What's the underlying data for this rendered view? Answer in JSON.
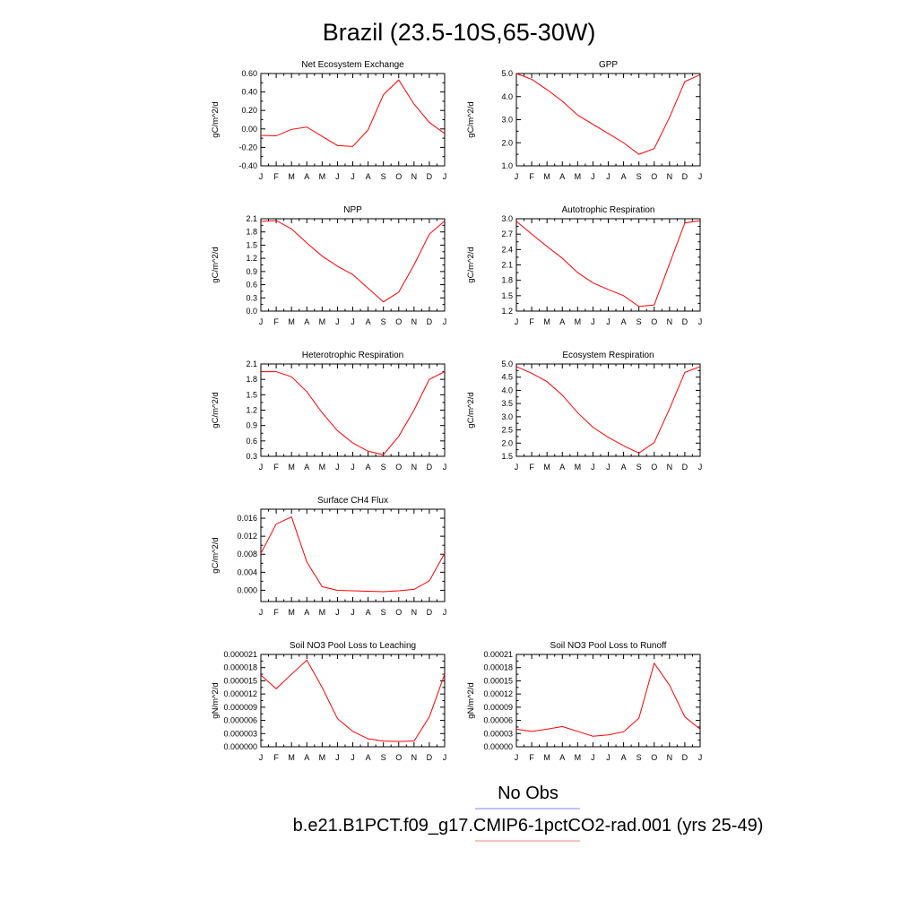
{
  "figure": {
    "title": "Brazil (23.5-10S,65-30W)"
  },
  "legend": {
    "obs_label": "No Obs",
    "model_label": "b.e21.B1PCT.f09_g17.CMIP6-1pctCO2-rad.001 (yrs 25-49)",
    "obs_color": "#8080ff",
    "model_color": "#ff8080"
  },
  "series_color": "#ff0000",
  "chart_data": [
    {
      "type": "line",
      "title": "Net Ecosystem Exchange",
      "ylabel": "gC/m^2/d",
      "x": [
        "J",
        "F",
        "M",
        "A",
        "M",
        "J",
        "J",
        "A",
        "S",
        "O",
        "N",
        "D",
        "J"
      ],
      "ylim": [
        -0.4,
        0.6
      ],
      "yticks": [
        -0.4,
        -0.2,
        0.0,
        0.2,
        0.4,
        0.6
      ],
      "ytick_labels": [
        "-0.40",
        "-0.20",
        "0.00",
        "0.20",
        "0.40",
        "0.60"
      ],
      "series": [
        {
          "values": [
            -0.07,
            -0.075,
            -0.005,
            0.02,
            -0.08,
            -0.18,
            -0.19,
            -0.01,
            0.37,
            0.53,
            0.27,
            0.07,
            -0.05
          ]
        }
      ]
    },
    {
      "type": "line",
      "title": "GPP",
      "ylabel": "gC/m^2/d",
      "x": [
        "J",
        "F",
        "M",
        "A",
        "M",
        "J",
        "J",
        "A",
        "S",
        "O",
        "N",
        "D",
        "J"
      ],
      "ylim": [
        1.0,
        5.0
      ],
      "yticks": [
        1,
        2,
        3,
        4,
        5
      ],
      "ytick_labels": [
        "1.0",
        "2.0",
        "3.0",
        "4.0",
        "5.0"
      ],
      "series": [
        {
          "values": [
            5.0,
            4.75,
            4.3,
            3.8,
            3.2,
            2.8,
            2.4,
            2.0,
            1.5,
            1.75,
            3.1,
            4.65,
            4.95
          ]
        }
      ]
    },
    {
      "type": "line",
      "title": "NPP",
      "ylabel": "gC/m^2/d",
      "x": [
        "J",
        "F",
        "M",
        "A",
        "M",
        "J",
        "J",
        "A",
        "S",
        "O",
        "N",
        "D",
        "J"
      ],
      "ylim": [
        0.0,
        2.1
      ],
      "yticks": [
        0,
        0.3,
        0.6,
        0.9,
        1.2,
        1.5,
        1.8,
        2.1
      ],
      "ytick_labels": [
        "0.0",
        "0.3",
        "0.6",
        "0.9",
        "1.2",
        "1.5",
        "1.8",
        "2.1"
      ],
      "series": [
        {
          "values": [
            2.04,
            2.06,
            1.87,
            1.55,
            1.25,
            1.02,
            0.83,
            0.52,
            0.21,
            0.43,
            1.05,
            1.75,
            2.05
          ]
        }
      ]
    },
    {
      "type": "line",
      "title": "Autotrophic Respiration",
      "ylabel": "gC/m^2/d",
      "x": [
        "J",
        "F",
        "M",
        "A",
        "M",
        "J",
        "J",
        "A",
        "S",
        "O",
        "N",
        "D",
        "J"
      ],
      "ylim": [
        1.2,
        3.0
      ],
      "yticks": [
        1.2,
        1.5,
        1.8,
        2.1,
        2.4,
        2.7,
        3.0
      ],
      "ytick_labels": [
        "1.2",
        "1.5",
        "1.8",
        "2.1",
        "2.4",
        "2.7",
        "3.0"
      ],
      "series": [
        {
          "values": [
            2.95,
            2.7,
            2.46,
            2.23,
            1.95,
            1.75,
            1.62,
            1.5,
            1.29,
            1.32,
            2.12,
            2.92,
            2.96
          ]
        }
      ]
    },
    {
      "type": "line",
      "title": "Heterotrophic Respiration",
      "ylabel": "gC/m^2/d",
      "x": [
        "J",
        "F",
        "M",
        "A",
        "M",
        "J",
        "J",
        "A",
        "S",
        "O",
        "N",
        "D",
        "J"
      ],
      "ylim": [
        0.3,
        2.1
      ],
      "yticks": [
        0.3,
        0.6,
        0.9,
        1.2,
        1.5,
        1.8,
        2.1
      ],
      "ytick_labels": [
        "0.3",
        "0.6",
        "0.9",
        "1.2",
        "1.5",
        "1.8",
        "2.1"
      ],
      "series": [
        {
          "values": [
            1.95,
            1.95,
            1.85,
            1.56,
            1.15,
            0.8,
            0.56,
            0.4,
            0.33,
            0.69,
            1.2,
            1.8,
            1.95
          ]
        }
      ]
    },
    {
      "type": "line",
      "title": "Ecosystem Respiration",
      "ylabel": "gC/m^2/d",
      "x": [
        "J",
        "F",
        "M",
        "A",
        "M",
        "J",
        "J",
        "A",
        "S",
        "O",
        "N",
        "D",
        "J"
      ],
      "ylim": [
        1.5,
        5.0
      ],
      "yticks": [
        1.5,
        2.0,
        2.5,
        3.0,
        3.5,
        4.0,
        4.5,
        5.0
      ],
      "ytick_labels": [
        "1.5",
        "2.0",
        "2.5",
        "3.0",
        "3.5",
        "4.0",
        "4.5",
        "5.0"
      ],
      "series": [
        {
          "values": [
            4.9,
            4.65,
            4.33,
            3.82,
            3.15,
            2.6,
            2.22,
            1.9,
            1.62,
            2.02,
            3.3,
            4.68,
            4.9
          ]
        }
      ]
    },
    {
      "type": "line",
      "title": "Surface CH4 Flux",
      "ylabel": "gC/m^2/d",
      "x": [
        "J",
        "F",
        "M",
        "A",
        "M",
        "J",
        "J",
        "A",
        "S",
        "O",
        "N",
        "D",
        "J"
      ],
      "ylim": [
        -0.0025,
        0.018
      ],
      "yticks": [
        0.0,
        0.004,
        0.008,
        0.012,
        0.016
      ],
      "ytick_labels": [
        "0.000",
        "0.004",
        "0.008",
        "0.012",
        "0.016"
      ],
      "series": [
        {
          "values": [
            0.0082,
            0.0147,
            0.0163,
            0.0063,
            0.0008,
            0.0,
            -0.0001,
            -0.0002,
            -0.0003,
            -0.0001,
            0.0002,
            0.0021,
            0.0082
          ]
        }
      ]
    },
    {
      "type": "line",
      "title": "Soil NO3 Pool Loss to Leaching",
      "ylabel": "gN/m^2/d",
      "x": [
        "J",
        "F",
        "M",
        "A",
        "M",
        "J",
        "J",
        "A",
        "S",
        "O",
        "N",
        "D",
        "J"
      ],
      "ylim": [
        0.0,
        2.1e-05
      ],
      "yticks": [
        0.0,
        3e-06,
        6e-06,
        9e-06,
        1.2e-05,
        1.5e-05,
        1.8e-05,
        2.1e-05
      ],
      "ytick_labels": [
        "0.000000",
        "0.000003",
        "0.000006",
        "0.000009",
        "0.000012",
        "0.000015",
        "0.000018",
        "0.000021"
      ],
      "series": [
        {
          "values": [
            1.63e-05,
            1.32e-05,
            1.65e-05,
            1.97e-05,
            1.35e-05,
            6.4e-06,
            3.5e-06,
            1.8e-06,
            1.3e-06,
            1.2e-06,
            1.3e-06,
            6.8e-06,
            1.65e-05
          ]
        }
      ]
    },
    {
      "type": "line",
      "title": "Soil NO3 Pool Loss to Runoff",
      "ylabel": "gN/m^2/d",
      "x": [
        "J",
        "F",
        "M",
        "A",
        "M",
        "J",
        "J",
        "A",
        "S",
        "O",
        "N",
        "D",
        "J"
      ],
      "ylim": [
        0.0,
        0.00021
      ],
      "yticks": [
        0.0,
        3e-05,
        6e-05,
        9e-05,
        0.00012,
        0.00015,
        0.00018,
        0.00021
      ],
      "ytick_labels": [
        "0.00000",
        "0.00003",
        "0.00006",
        "0.00009",
        "0.00012",
        "0.00015",
        "0.00018",
        "0.00021"
      ],
      "series": [
        {
          "values": [
            4e-05,
            3.5e-05,
            4e-05,
            4.6e-05,
            3.5e-05,
            2.4e-05,
            2.7e-05,
            3.4e-05,
            6.5e-05,
            0.00019,
            0.00014,
            6.8e-05,
            4e-05
          ]
        }
      ]
    }
  ]
}
